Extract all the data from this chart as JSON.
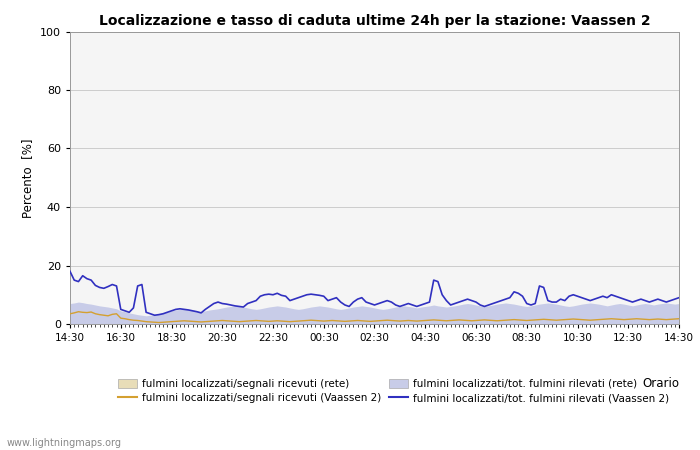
{
  "title": "Localizzazione e tasso di caduta ultime 24h per la stazione: Vaassen 2",
  "ylabel": "Percento  [%]",
  "xlabel": "Orario",
  "ylim": [
    0,
    100
  ],
  "yticks": [
    0,
    20,
    40,
    60,
    80,
    100
  ],
  "xtick_labels": [
    "14:30",
    "16:30",
    "18:30",
    "20:30",
    "22:30",
    "00:30",
    "02:30",
    "04:30",
    "06:30",
    "08:30",
    "10:30",
    "12:30",
    "14:30"
  ],
  "watermark": "www.lightningmaps.org",
  "bg_color": "#ffffff",
  "plot_bg_color": "#f5f5f5",
  "grid_color": "#cccccc",
  "series": {
    "rete_fill": {
      "color": "#e8ddb8",
      "alpha": 1.0,
      "label": "fulmini localizzati/segnali ricevuti (rete)"
    },
    "vaassen_fill": {
      "color": "#c8cce8",
      "alpha": 1.0,
      "label": "fulmini localizzati/tot. fulmini rilevati (rete)"
    },
    "rete_line": {
      "color": "#d4a030",
      "linewidth": 1.0,
      "label": "fulmini localizzati/segnali ricevuti (Vaassen 2)"
    },
    "vaassen_line": {
      "color": "#3030c0",
      "linewidth": 1.2,
      "label": "fulmini localizzati/tot. fulmini rilevati (Vaassen 2)"
    }
  },
  "n_points": 145,
  "rete_fill_data": [
    3.5,
    3.8,
    4.2,
    4.0,
    3.9,
    4.1,
    3.5,
    3.2,
    3.0,
    2.8,
    3.3,
    3.5,
    2.0,
    1.8,
    1.5,
    1.3,
    1.2,
    1.0,
    0.8,
    0.7,
    0.6,
    0.5,
    0.6,
    0.7,
    0.8,
    0.9,
    1.0,
    1.1,
    1.0,
    0.9,
    0.8,
    0.7,
    0.8,
    0.9,
    1.0,
    1.1,
    1.2,
    1.1,
    1.0,
    0.9,
    0.8,
    0.9,
    1.0,
    1.1,
    1.2,
    1.1,
    1.0,
    0.9,
    1.0,
    1.1,
    1.0,
    0.9,
    0.8,
    0.9,
    1.0,
    1.1,
    1.2,
    1.3,
    1.2,
    1.1,
    1.0,
    1.1,
    1.2,
    1.1,
    1.0,
    0.9,
    1.0,
    1.1,
    1.2,
    1.1,
    1.0,
    0.9,
    1.0,
    1.1,
    1.2,
    1.3,
    1.2,
    1.1,
    1.0,
    1.1,
    1.2,
    1.1,
    1.0,
    1.1,
    1.2,
    1.3,
    1.4,
    1.3,
    1.2,
    1.1,
    1.2,
    1.3,
    1.4,
    1.3,
    1.2,
    1.1,
    1.2,
    1.3,
    1.4,
    1.3,
    1.2,
    1.1,
    1.2,
    1.3,
    1.4,
    1.5,
    1.4,
    1.3,
    1.2,
    1.3,
    1.4,
    1.5,
    1.6,
    1.5,
    1.4,
    1.3,
    1.4,
    1.5,
    1.6,
    1.7,
    1.6,
    1.5,
    1.4,
    1.3,
    1.4,
    1.5,
    1.6,
    1.7,
    1.8,
    1.7,
    1.6,
    1.5,
    1.6,
    1.7,
    1.8,
    1.7,
    1.6,
    1.5,
    1.6,
    1.7,
    1.6,
    1.5,
    1.6,
    1.7,
    1.8
  ],
  "vaassen_fill_data": [
    7.0,
    7.2,
    7.5,
    7.3,
    7.0,
    6.8,
    6.5,
    6.2,
    6.0,
    5.8,
    5.5,
    5.2,
    4.5,
    4.2,
    3.8,
    3.5,
    3.2,
    3.0,
    2.8,
    3.0,
    3.2,
    3.5,
    3.8,
    4.0,
    4.5,
    4.8,
    5.0,
    5.2,
    5.0,
    4.8,
    4.5,
    4.2,
    4.5,
    4.8,
    5.0,
    5.2,
    5.5,
    5.8,
    6.0,
    6.2,
    6.0,
    5.8,
    5.5,
    5.2,
    5.0,
    5.2,
    5.5,
    5.8,
    6.0,
    6.2,
    6.0,
    5.8,
    5.5,
    5.2,
    5.0,
    5.2,
    5.5,
    5.8,
    6.0,
    6.2,
    6.0,
    5.8,
    5.5,
    5.2,
    5.0,
    5.2,
    5.5,
    5.8,
    6.0,
    6.2,
    6.0,
    5.8,
    5.5,
    5.2,
    5.0,
    5.2,
    5.5,
    5.8,
    6.0,
    6.2,
    6.0,
    5.8,
    5.5,
    5.8,
    6.0,
    6.2,
    6.5,
    6.2,
    6.0,
    5.8,
    6.0,
    6.2,
    6.5,
    6.8,
    7.0,
    6.8,
    6.5,
    6.2,
    6.0,
    6.2,
    6.5,
    6.8,
    7.0,
    7.2,
    7.0,
    6.8,
    6.5,
    6.2,
    6.0,
    6.2,
    6.5,
    6.8,
    7.0,
    7.2,
    7.0,
    6.8,
    6.5,
    6.2,
    6.0,
    6.2,
    6.5,
    6.8,
    7.0,
    7.2,
    7.0,
    6.8,
    6.5,
    6.2,
    6.5,
    6.8,
    7.0,
    6.8,
    6.5,
    6.2,
    6.5,
    6.8,
    7.0,
    6.8,
    6.5,
    6.8,
    7.0,
    7.2,
    7.0,
    6.8,
    7.0
  ],
  "rete_line_data": [
    3.5,
    3.8,
    4.2,
    4.0,
    3.9,
    4.1,
    3.5,
    3.2,
    3.0,
    2.8,
    3.3,
    3.5,
    2.0,
    1.8,
    1.5,
    1.3,
    1.2,
    1.0,
    0.8,
    0.7,
    0.6,
    0.5,
    0.6,
    0.7,
    0.8,
    0.9,
    1.0,
    1.1,
    1.0,
    0.9,
    0.8,
    0.7,
    0.8,
    0.9,
    1.0,
    1.1,
    1.2,
    1.1,
    1.0,
    0.9,
    0.8,
    0.9,
    1.0,
    1.1,
    1.2,
    1.1,
    1.0,
    0.9,
    1.0,
    1.1,
    1.0,
    0.9,
    0.8,
    0.9,
    1.0,
    1.1,
    1.2,
    1.3,
    1.2,
    1.1,
    1.0,
    1.1,
    1.2,
    1.1,
    1.0,
    0.9,
    1.0,
    1.1,
    1.2,
    1.1,
    1.0,
    0.9,
    1.0,
    1.1,
    1.2,
    1.3,
    1.2,
    1.1,
    1.0,
    1.1,
    1.2,
    1.1,
    1.0,
    1.1,
    1.2,
    1.3,
    1.4,
    1.3,
    1.2,
    1.1,
    1.2,
    1.3,
    1.4,
    1.3,
    1.2,
    1.1,
    1.2,
    1.3,
    1.4,
    1.3,
    1.2,
    1.1,
    1.2,
    1.3,
    1.4,
    1.5,
    1.4,
    1.3,
    1.2,
    1.3,
    1.4,
    1.5,
    1.6,
    1.5,
    1.4,
    1.3,
    1.4,
    1.5,
    1.6,
    1.7,
    1.6,
    1.5,
    1.4,
    1.3,
    1.4,
    1.5,
    1.6,
    1.7,
    1.8,
    1.7,
    1.6,
    1.5,
    1.6,
    1.7,
    1.8,
    1.7,
    1.6,
    1.5,
    1.6,
    1.7,
    1.6,
    1.5,
    1.6,
    1.7,
    1.8
  ],
  "vaassen_line_data": [
    18.0,
    15.0,
    14.5,
    16.5,
    15.5,
    15.0,
    13.2,
    12.5,
    12.2,
    12.8,
    13.5,
    13.0,
    5.0,
    4.5,
    4.0,
    5.5,
    13.0,
    13.5,
    4.0,
    3.5,
    3.0,
    3.2,
    3.5,
    4.0,
    4.5,
    5.0,
    5.2,
    5.0,
    4.8,
    4.5,
    4.2,
    3.8,
    5.0,
    6.0,
    7.0,
    7.5,
    7.0,
    6.8,
    6.5,
    6.2,
    6.0,
    5.8,
    7.0,
    7.5,
    8.0,
    9.5,
    10.0,
    10.2,
    10.0,
    10.5,
    9.8,
    9.5,
    8.0,
    8.5,
    9.0,
    9.5,
    10.0,
    10.2,
    10.0,
    9.8,
    9.5,
    8.0,
    8.5,
    9.0,
    7.5,
    6.5,
    6.0,
    7.5,
    8.5,
    9.0,
    7.5,
    7.0,
    6.5,
    7.0,
    7.5,
    8.0,
    7.5,
    6.5,
    6.0,
    6.5,
    7.0,
    6.5,
    6.0,
    6.5,
    7.0,
    7.5,
    15.0,
    14.5,
    10.0,
    8.0,
    6.5,
    7.0,
    7.5,
    8.0,
    8.5,
    8.0,
    7.5,
    6.5,
    6.0,
    6.5,
    7.0,
    7.5,
    8.0,
    8.5,
    9.0,
    11.0,
    10.5,
    9.5,
    7.0,
    6.5,
    7.0,
    13.0,
    12.5,
    8.0,
    7.5,
    7.5,
    8.5,
    8.0,
    9.5,
    10.0,
    9.5,
    9.0,
    8.5,
    8.0,
    8.5,
    9.0,
    9.5,
    9.0,
    10.0,
    9.5,
    9.0,
    8.5,
    8.0,
    7.5,
    8.0,
    8.5,
    8.0,
    7.5,
    8.0,
    8.5,
    8.0,
    7.5,
    8.0,
    8.5,
    9.0
  ]
}
